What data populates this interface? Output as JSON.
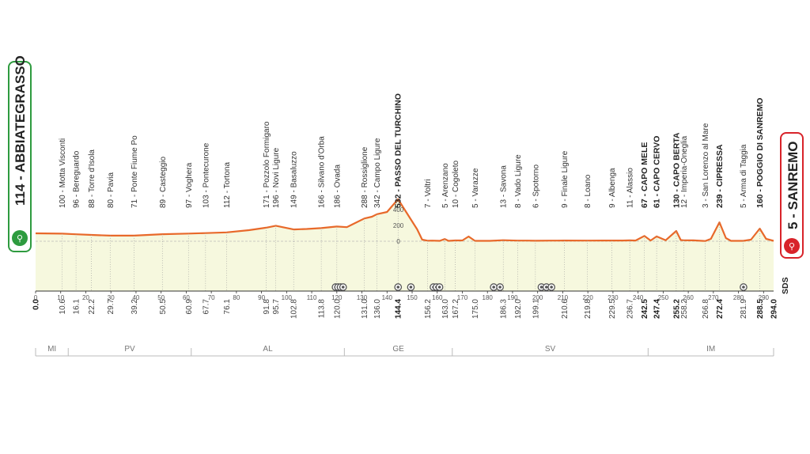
{
  "colors": {
    "profile_line": "#e8692a",
    "profile_fill": "#f6f8de",
    "start_badge": "#2e9b3f",
    "finish_badge": "#d8232a",
    "sprint_marker": "#555555"
  },
  "start": {
    "label": "114 - ABBIATEGRASSO",
    "icon": "cyclist-icon"
  },
  "finish": {
    "label": "5 - SANREMO",
    "icon": "cyclist-icon"
  },
  "brand": "SDS",
  "chart_data": {
    "type": "area",
    "title": "",
    "xlabel": "",
    "ylabel": "",
    "xlim": [
      0,
      294
    ],
    "ylim": [
      0,
      400
    ],
    "y_ticks": [
      "0",
      "200",
      "400"
    ],
    "x_ticks": [
      "0",
      "10",
      "20",
      "30",
      "40",
      "50",
      "60",
      "70",
      "80",
      "90",
      "100",
      "110",
      "120",
      "130",
      "140",
      "150",
      "160",
      "170",
      "180",
      "190",
      "200",
      "210",
      "220",
      "230",
      "240",
      "250",
      "260",
      "270",
      "280",
      "290"
    ],
    "grid": false,
    "profile": {
      "x": [
        0,
        10.6,
        16.1,
        22.2,
        29.7,
        39.2,
        50.5,
        60.9,
        67.7,
        76.1,
        85,
        91.8,
        95.7,
        102.8,
        108,
        113.8,
        118,
        120,
        124,
        126,
        131,
        134,
        136,
        140,
        144.4,
        148,
        152,
        154,
        156.2,
        158,
        161,
        163,
        164.5,
        167.2,
        170,
        172.5,
        175,
        181,
        186.3,
        192,
        196,
        199.1,
        205,
        208,
        210.6,
        219.8,
        229.5,
        234,
        236.7,
        239,
        242.5,
        245,
        247.4,
        251,
        255.2,
        257,
        258.2,
        262,
        266.8,
        269,
        272.4,
        275,
        277,
        281.9,
        285,
        288.5,
        291,
        294
      ],
      "y": [
        100,
        96,
        88,
        80,
        71,
        71,
        89,
        97,
        103,
        112,
        140,
        171,
        196,
        149,
        155,
        166,
        180,
        186,
        178,
        210,
        288,
        310,
        342,
        370,
        532,
        350,
        150,
        20,
        7,
        8,
        5,
        28,
        5,
        10,
        10,
        60,
        5,
        5,
        13,
        8,
        8,
        6,
        8,
        8,
        9,
        8,
        9,
        9,
        11,
        9,
        67,
        9,
        61,
        12,
        130,
        15,
        12,
        11,
        3,
        30,
        239,
        40,
        5,
        5,
        20,
        160,
        30,
        5
      ]
    },
    "waypoints": [
      {
        "km": "10.6",
        "x": 10.6,
        "label": "100 - Motta Visconti",
        "bold": false
      },
      {
        "km": "16.1",
        "x": 16.1,
        "label": "96 - Bereguardo",
        "bold": false
      },
      {
        "km": "22.2",
        "x": 22.2,
        "label": "88 - Torre d'Isola",
        "bold": false
      },
      {
        "km": "29.7",
        "x": 29.7,
        "label": "80 - Pavia",
        "bold": false
      },
      {
        "km": "39.2",
        "x": 39.2,
        "label": "71 - Ponte Fiume Po",
        "bold": false
      },
      {
        "km": "50.5",
        "x": 50.5,
        "label": "89 - Casteggio",
        "bold": false
      },
      {
        "km": "60.9",
        "x": 60.9,
        "label": "97 - Voghera",
        "bold": false
      },
      {
        "km": "67.7",
        "x": 67.7,
        "label": "103 - Pontecurone",
        "bold": false
      },
      {
        "km": "76.1",
        "x": 76.1,
        "label": "112 - Tortona",
        "bold": false
      },
      {
        "km": "91.8",
        "x": 91.8,
        "label": "171 - Pozzolo Formigaro",
        "bold": false
      },
      {
        "km": "95.7",
        "x": 95.7,
        "label": "196 - Novi Ligure",
        "bold": false
      },
      {
        "km": "102.8",
        "x": 102.8,
        "label": "149 - Basaluzzo",
        "bold": false
      },
      {
        "km": "113.8",
        "x": 113.8,
        "label": "166 - Silvano d'Orba",
        "bold": false
      },
      {
        "km": "120.0",
        "x": 120.0,
        "label": "186 - Ovada",
        "bold": false
      },
      {
        "km": "131.0",
        "x": 131.0,
        "label": "288 - Rossiglione",
        "bold": false
      },
      {
        "km": "136.0",
        "x": 136.0,
        "label": "342 - Campo Ligure",
        "bold": false
      },
      {
        "km": "144.4",
        "x": 144.4,
        "label": "532 - PASSO DEL TURCHINO",
        "bold": true
      },
      {
        "km": "156.2",
        "x": 156.2,
        "label": "7 - Voltri",
        "bold": false
      },
      {
        "km": "163.0",
        "x": 163.0,
        "label": "5 - Arenzano",
        "bold": false
      },
      {
        "km": "167.2",
        "x": 167.2,
        "label": "10 - Cogoleto",
        "bold": false
      },
      {
        "km": "175.0",
        "x": 175.0,
        "label": "5 - Varazze",
        "bold": false
      },
      {
        "km": "186.3",
        "x": 186.3,
        "label": "13 - Savona",
        "bold": false
      },
      {
        "km": "192.0",
        "x": 192.0,
        "label": "8 - Vado Ligure",
        "bold": false
      },
      {
        "km": "199.1",
        "x": 199.1,
        "label": "6 - Spotorno",
        "bold": false
      },
      {
        "km": "210.6",
        "x": 210.6,
        "label": "9 - Finale Ligure",
        "bold": false
      },
      {
        "km": "219.8",
        "x": 219.8,
        "label": "8 - Loano",
        "bold": false
      },
      {
        "km": "229.5",
        "x": 229.5,
        "label": "9 - Albenga",
        "bold": false
      },
      {
        "km": "236.7",
        "x": 236.7,
        "label": "11 - Alassio",
        "bold": false
      },
      {
        "km": "242.5",
        "x": 242.5,
        "label": "67 - CAPO MELE",
        "bold": true
      },
      {
        "km": "247.4",
        "x": 247.4,
        "label": "61 - CAPO CERVO",
        "bold": true
      },
      {
        "km": "255.2",
        "x": 255.2,
        "label": "130 - CAPO BERTA",
        "bold": true
      },
      {
        "km": "258.2",
        "x": 258.2,
        "label": "12 - Imperia-Oneglia",
        "bold": false
      },
      {
        "km": "266.8",
        "x": 266.8,
        "label": "3 - San Lorenzo al Mare",
        "bold": false
      },
      {
        "km": "272.4",
        "x": 272.4,
        "label": "239 - CIPRESSA",
        "bold": true
      },
      {
        "km": "281.9",
        "x": 281.9,
        "label": "5 - Arma di Taggia",
        "bold": false
      },
      {
        "km": "288.5",
        "x": 288.5,
        "label": "160 - POGGIO DI SANREMO",
        "bold": true
      }
    ],
    "start_km": "0.0",
    "finish_km": "294.0",
    "markers": [
      {
        "km": 119.5
      },
      {
        "km": 120.5
      },
      {
        "km": 121.5
      },
      {
        "km": 122.5
      },
      {
        "km": 144.4
      },
      {
        "km": 149.5
      },
      {
        "km": 158.5
      },
      {
        "km": 159.7
      },
      {
        "km": 160.9
      },
      {
        "km": 182.5
      },
      {
        "km": 185
      },
      {
        "km": 201.5
      },
      {
        "km": 203.5
      },
      {
        "km": 205.5
      },
      {
        "km": 282
      }
    ],
    "regions": [
      {
        "name": "MI",
        "from": 0,
        "to": 13
      },
      {
        "name": "PV",
        "from": 13,
        "to": 62
      },
      {
        "name": "AL",
        "from": 62,
        "to": 123
      },
      {
        "name": "GE",
        "from": 123,
        "to": 166
      },
      {
        "name": "SV",
        "from": 166,
        "to": 244
      },
      {
        "name": "IM",
        "from": 244,
        "to": 294
      }
    ]
  }
}
